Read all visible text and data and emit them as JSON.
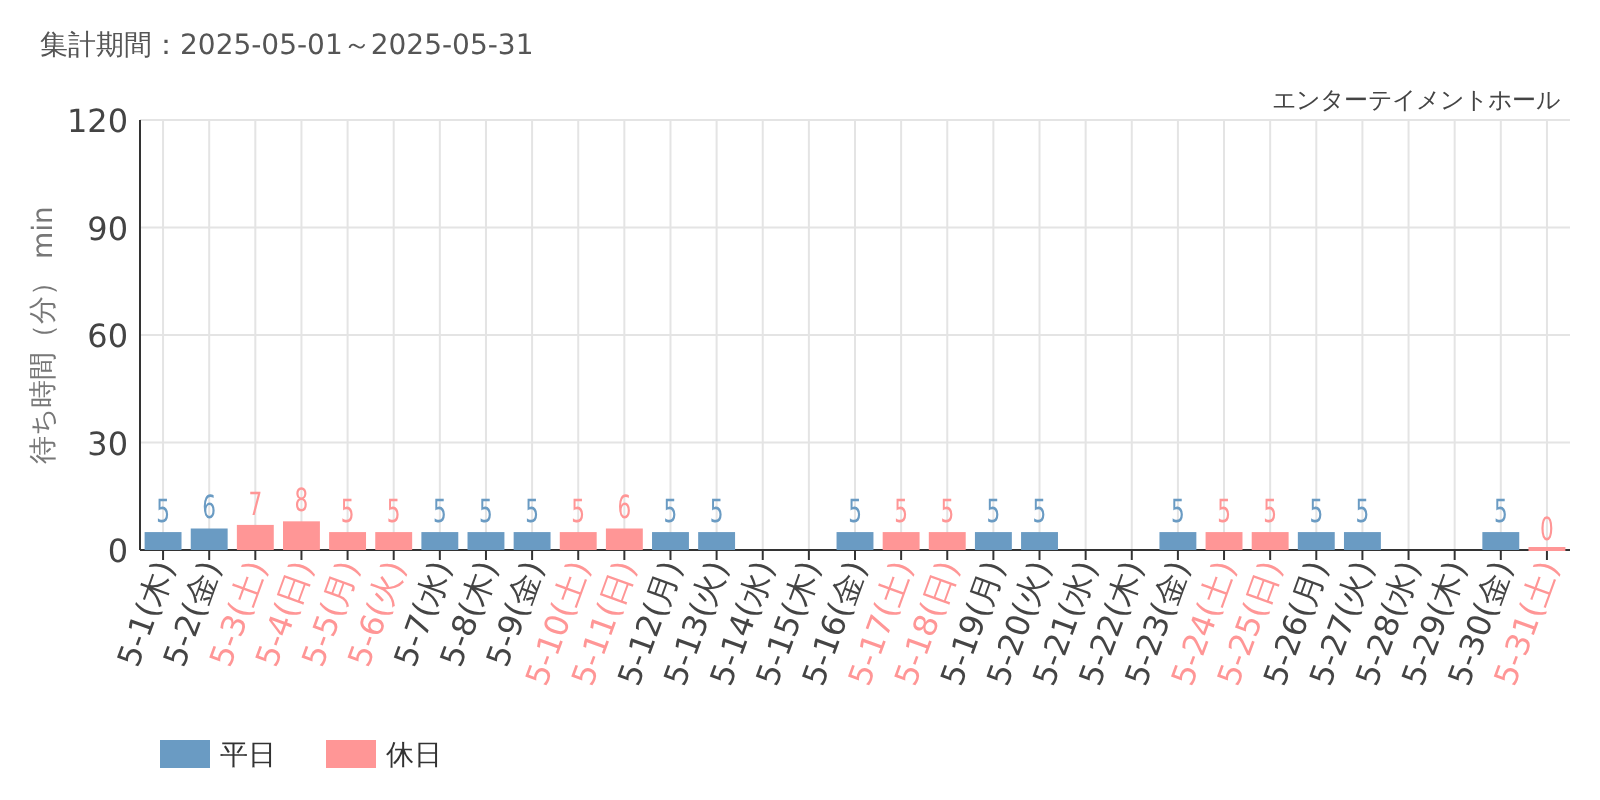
{
  "chart_data": {
    "type": "bar",
    "title": "集計期間：2025-05-01～2025-05-31",
    "subtitle": "エンターテイメントホール",
    "ylabel": "待ち時間（分） min",
    "categories": [
      "5-1(木)",
      "5-2(金)",
      "5-3(土)",
      "5-4(日)",
      "5-5(月)",
      "5-6(火)",
      "5-7(水)",
      "5-8(木)",
      "5-9(金)",
      "5-10(土)",
      "5-11(日)",
      "5-12(月)",
      "5-13(火)",
      "5-14(水)",
      "5-15(木)",
      "5-16(金)",
      "5-17(土)",
      "5-18(日)",
      "5-19(月)",
      "5-20(火)",
      "5-21(水)",
      "5-22(木)",
      "5-23(金)",
      "5-24(土)",
      "5-25(日)",
      "5-26(月)",
      "5-27(火)",
      "5-28(水)",
      "5-29(木)",
      "5-30(金)",
      "5-31(土)"
    ],
    "series": [
      {
        "name": "平日",
        "color": "#6a9bc3",
        "values": [
          5,
          6,
          null,
          null,
          null,
          null,
          5,
          5,
          5,
          null,
          null,
          5,
          5,
          null,
          null,
          5,
          null,
          null,
          5,
          5,
          null,
          null,
          5,
          null,
          null,
          5,
          5,
          null,
          null,
          5,
          null
        ]
      },
      {
        "name": "休日",
        "color": "#ff9696",
        "values": [
          null,
          null,
          7,
          8,
          5,
          5,
          null,
          null,
          null,
          5,
          6,
          null,
          null,
          null,
          null,
          null,
          5,
          5,
          null,
          null,
          null,
          null,
          null,
          5,
          5,
          null,
          null,
          null,
          null,
          null,
          0
        ]
      }
    ],
    "ylim": [
      0,
      120
    ],
    "yticks": [
      0,
      30,
      60,
      90,
      120
    ],
    "grid": true,
    "legend": "bottom",
    "data_labels": true
  }
}
